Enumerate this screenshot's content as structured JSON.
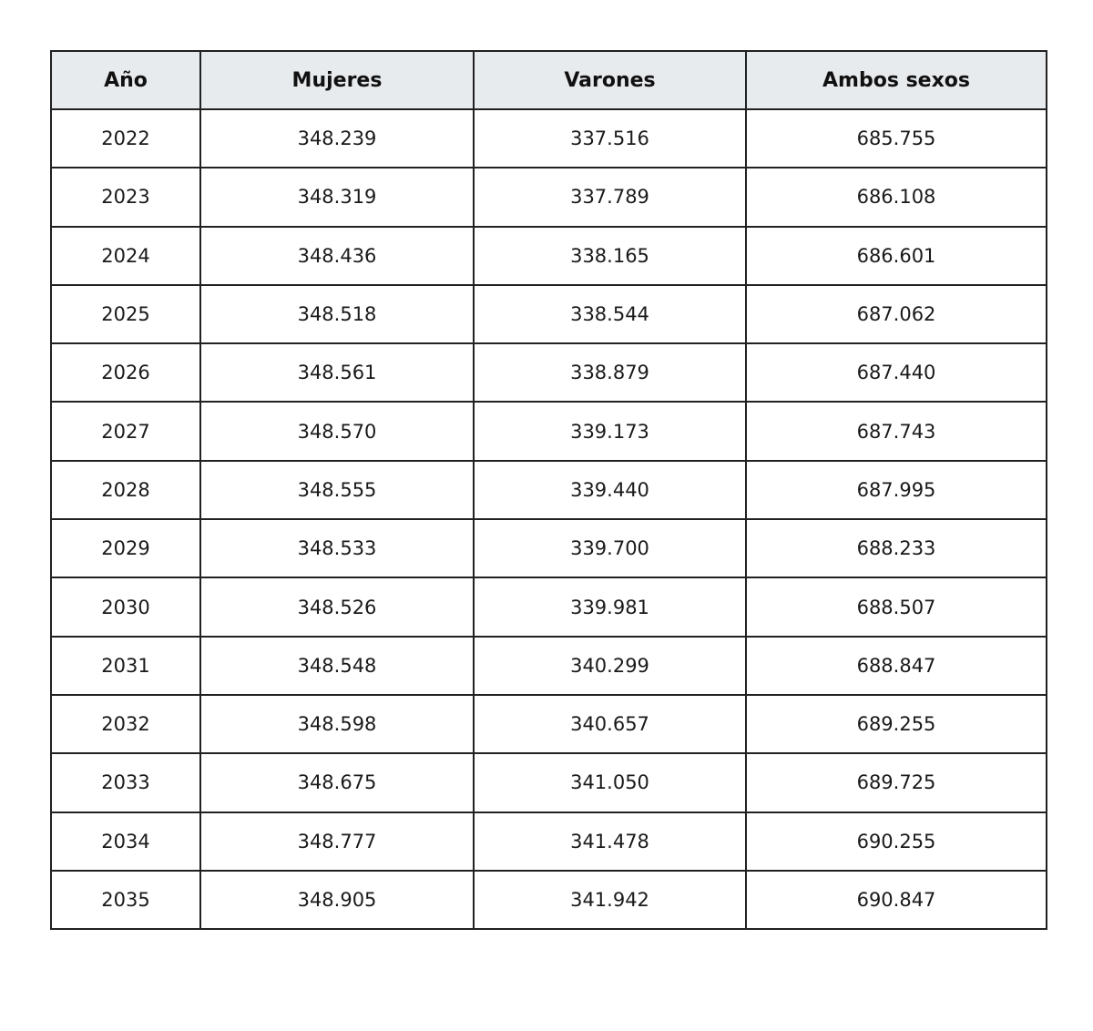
{
  "table": {
    "columns": [
      "Año",
      "Mujeres",
      "Varones",
      "Ambos sexos"
    ],
    "rows": [
      [
        "2022",
        "348.239",
        "337.516",
        "685.755"
      ],
      [
        "2023",
        "348.319",
        "337.789",
        "686.108"
      ],
      [
        "2024",
        "348.436",
        "338.165",
        "686.601"
      ],
      [
        "2025",
        "348.518",
        "338.544",
        "687.062"
      ],
      [
        "2026",
        "348.561",
        "338.879",
        "687.440"
      ],
      [
        "2027",
        "348.570",
        "339.173",
        "687.743"
      ],
      [
        "2028",
        "348.555",
        "339.440",
        "687.995"
      ],
      [
        "2029",
        "348.533",
        "339.700",
        "688.233"
      ],
      [
        "2030",
        "348.526",
        "339.981",
        "688.507"
      ],
      [
        "2031",
        "348.548",
        "340.299",
        "688.847"
      ],
      [
        "2032",
        "348.598",
        "340.657",
        "689.255"
      ],
      [
        "2033",
        "348.675",
        "341.050",
        "689.725"
      ],
      [
        "2034",
        "348.777",
        "341.478",
        "690.255"
      ],
      [
        "2035",
        "348.905",
        "341.942",
        "690.847"
      ]
    ]
  },
  "colors": {
    "header_background": "#e8ebee",
    "border": "#212121",
    "text": "#1a1a1a",
    "page_background": "#ffffff"
  },
  "chart_data": {
    "type": "table",
    "title": "",
    "columns": [
      "Año",
      "Mujeres",
      "Varones",
      "Ambos sexos"
    ],
    "rows": [
      {
        "año": 2022,
        "mujeres": 348239,
        "varones": 337516,
        "ambos_sexos": 685755
      },
      {
        "año": 2023,
        "mujeres": 348319,
        "varones": 337789,
        "ambos_sexos": 686108
      },
      {
        "año": 2024,
        "mujeres": 348436,
        "varones": 338165,
        "ambos_sexos": 686601
      },
      {
        "año": 2025,
        "mujeres": 348518,
        "varones": 338544,
        "ambos_sexos": 687062
      },
      {
        "año": 2026,
        "mujeres": 348561,
        "varones": 338879,
        "ambos_sexos": 687440
      },
      {
        "año": 2027,
        "mujeres": 348570,
        "varones": 339173,
        "ambos_sexos": 687743
      },
      {
        "año": 2028,
        "mujeres": 348555,
        "varones": 339440,
        "ambos_sexos": 687995
      },
      {
        "año": 2029,
        "mujeres": 348533,
        "varones": 339700,
        "ambos_sexos": 688233
      },
      {
        "año": 2030,
        "mujeres": 348526,
        "varones": 339981,
        "ambos_sexos": 688507
      },
      {
        "año": 2031,
        "mujeres": 348548,
        "varones": 340299,
        "ambos_sexos": 688847
      },
      {
        "año": 2032,
        "mujeres": 348598,
        "varones": 340657,
        "ambos_sexos": 689255
      },
      {
        "año": 2033,
        "mujeres": 348675,
        "varones": 341050,
        "ambos_sexos": 689725
      },
      {
        "año": 2034,
        "mujeres": 348777,
        "varones": 341478,
        "ambos_sexos": 690255
      },
      {
        "año": 2035,
        "mujeres": 348905,
        "varones": 341942,
        "ambos_sexos": 690847
      }
    ],
    "number_format": "thousands separated by dot",
    "layout": {
      "grid": true,
      "header_row": true,
      "alignment": "center"
    }
  }
}
